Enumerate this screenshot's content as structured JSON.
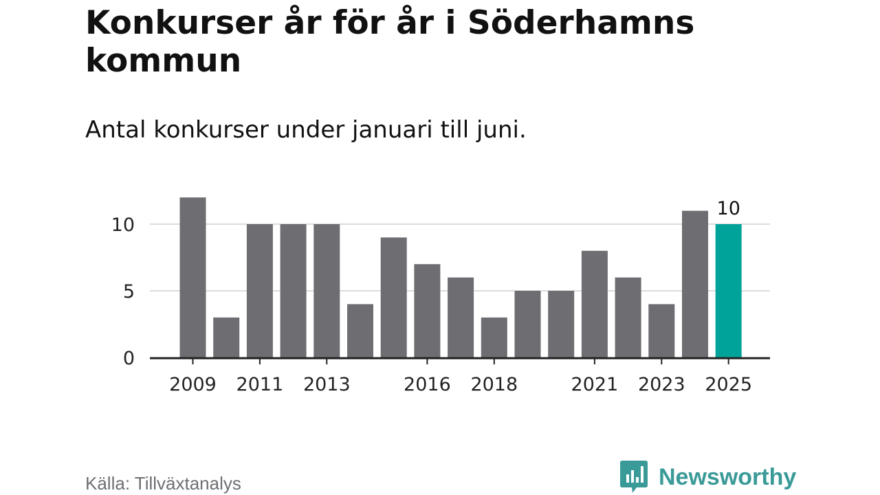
{
  "header": {
    "title": "Konkurser år för år i Söderhamns kommun",
    "subtitle": "Antal konkurser under januari till juni."
  },
  "footer": {
    "source": "Källa: Tillväxtanalys",
    "brand": "Newsworthy",
    "brand_icon": "chart-speech-bubble-icon",
    "brand_color": "#3a9a98"
  },
  "chart_data": {
    "type": "bar",
    "categories": [
      "2009",
      "2010",
      "2011",
      "2012",
      "2013",
      "2014",
      "2015",
      "2016",
      "2017",
      "2018",
      "2019",
      "2020",
      "2021",
      "2022",
      "2023",
      "2024",
      "2025"
    ],
    "values": [
      12,
      3,
      10,
      10,
      10,
      4,
      9,
      7,
      6,
      3,
      5,
      5,
      8,
      6,
      4,
      11,
      10
    ],
    "x_tick_labels": [
      "2009",
      "2011",
      "2013",
      "2016",
      "2018",
      "2021",
      "2023",
      "2025"
    ],
    "y_ticks": [
      0,
      5,
      10
    ],
    "ylim": [
      0,
      12
    ],
    "grid": true,
    "highlight": {
      "category": "2025",
      "value": 10,
      "label": "10"
    },
    "colors": {
      "bar": "#6e6d72",
      "highlight": "#00a39a",
      "grid": "#dcdcdc",
      "axis": "#222222"
    }
  }
}
